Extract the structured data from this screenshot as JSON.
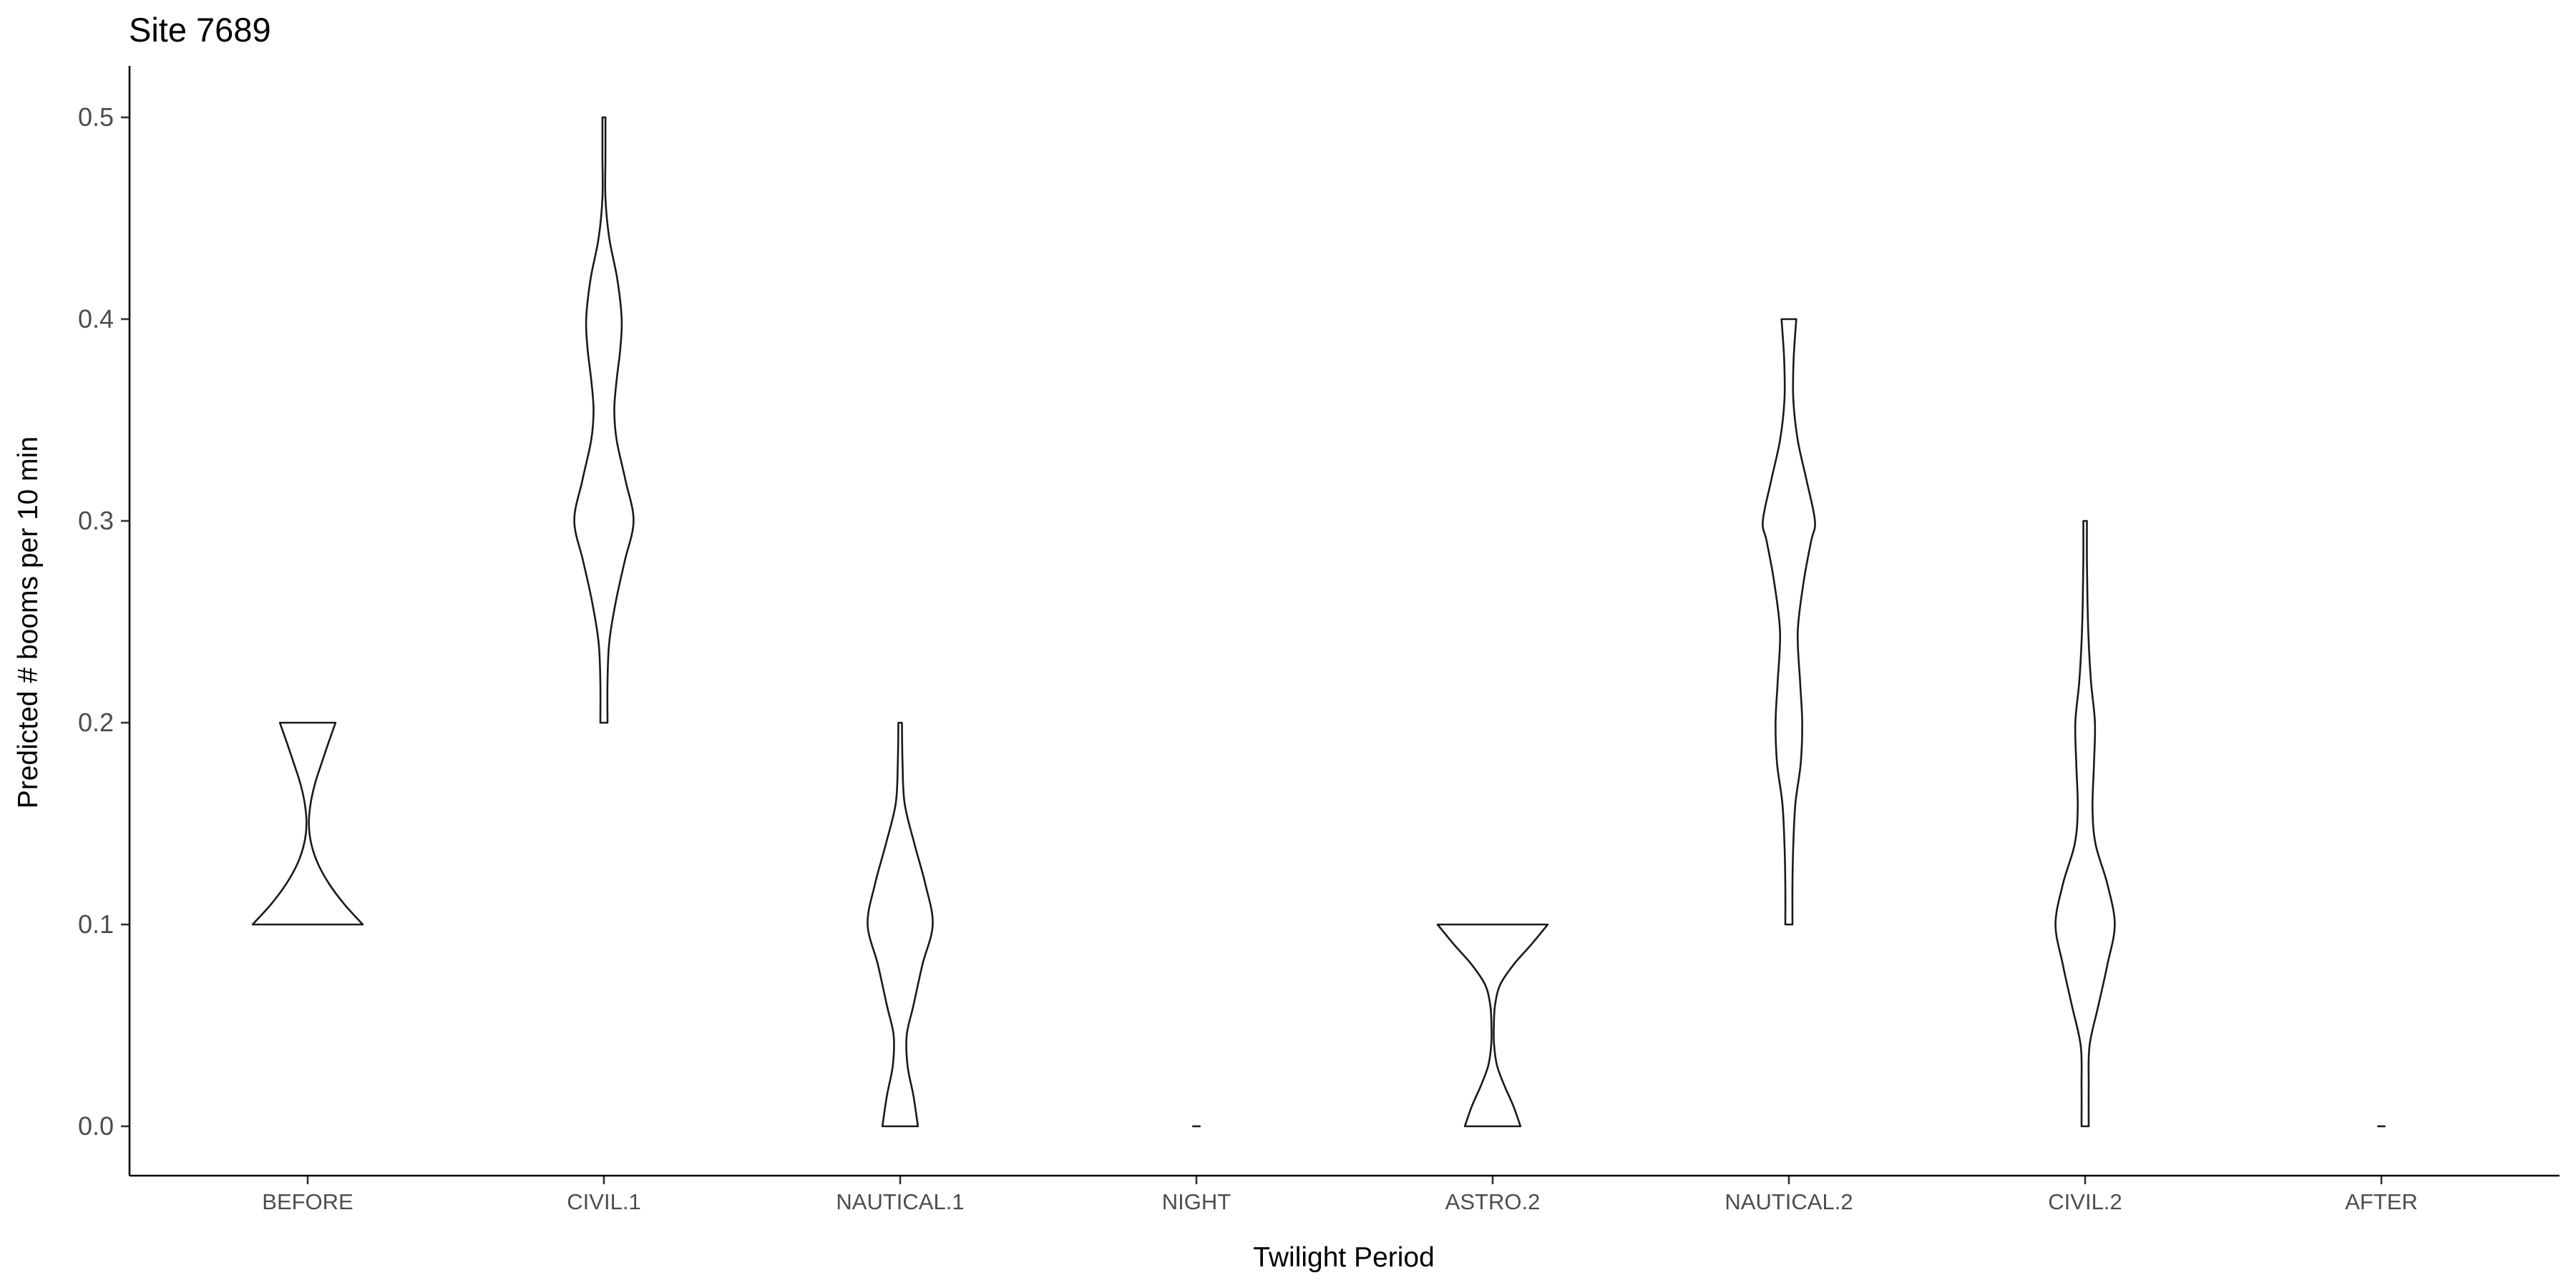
{
  "chart_data": {
    "type": "violin",
    "title": "Site 7689",
    "xlabel": "Twilight Period",
    "ylabel": "Predicted # booms per 10 min",
    "categories": [
      "BEFORE",
      "CIVIL.1",
      "NAUTICAL.1",
      "NIGHT",
      "ASTRO.2",
      "NAUTICAL.2",
      "CIVIL.2",
      "AFTER"
    ],
    "ylim": [
      -0.025,
      0.525
    ],
    "yticks": [
      0.0,
      0.1,
      0.2,
      0.3,
      0.4,
      0.5
    ],
    "ytick_labels": [
      "0.0",
      "0.1",
      "0.2",
      "0.3",
      "0.4",
      "0.5"
    ],
    "grid": false,
    "legend": "none",
    "violins": [
      {
        "category": "BEFORE",
        "min": 0.1,
        "max": 0.2,
        "profile": [
          [
            0.1,
            0.186
          ],
          [
            0.11,
            0.124
          ],
          [
            0.12,
            0.073
          ],
          [
            0.13,
            0.035
          ],
          [
            0.14,
            0.012
          ],
          [
            0.15,
            0.004
          ],
          [
            0.16,
            0.01
          ],
          [
            0.17,
            0.025
          ],
          [
            0.18,
            0.047
          ],
          [
            0.19,
            0.07
          ],
          [
            0.2,
            0.094
          ]
        ]
      },
      {
        "category": "CIVIL.1",
        "min": 0.2,
        "max": 0.5,
        "profile": [
          [
            0.2,
            0.012
          ],
          [
            0.22,
            0.012
          ],
          [
            0.24,
            0.018
          ],
          [
            0.26,
            0.04
          ],
          [
            0.28,
            0.07
          ],
          [
            0.3,
            0.1
          ],
          [
            0.32,
            0.073
          ],
          [
            0.34,
            0.043
          ],
          [
            0.355,
            0.035
          ],
          [
            0.37,
            0.043
          ],
          [
            0.385,
            0.055
          ],
          [
            0.4,
            0.06
          ],
          [
            0.42,
            0.045
          ],
          [
            0.44,
            0.018
          ],
          [
            0.46,
            0.005
          ],
          [
            0.48,
            0.005
          ],
          [
            0.5,
            0.005
          ]
        ]
      },
      {
        "category": "NAUTICAL.1",
        "min": 0.0,
        "max": 0.2,
        "profile": [
          [
            0.0,
            0.06
          ],
          [
            0.015,
            0.045
          ],
          [
            0.03,
            0.025
          ],
          [
            0.045,
            0.022
          ],
          [
            0.06,
            0.045
          ],
          [
            0.08,
            0.075
          ],
          [
            0.1,
            0.11
          ],
          [
            0.12,
            0.085
          ],
          [
            0.14,
            0.048
          ],
          [
            0.16,
            0.015
          ],
          [
            0.18,
            0.008
          ],
          [
            0.2,
            0.006
          ]
        ]
      },
      {
        "category": "NIGHT",
        "min": 0.0,
        "max": 0.0,
        "profile": [
          [
            0.0,
            0.014
          ]
        ]
      },
      {
        "category": "ASTRO.2",
        "min": 0.0,
        "max": 0.1,
        "profile": [
          [
            0.0,
            0.094
          ],
          [
            0.01,
            0.07
          ],
          [
            0.02,
            0.04
          ],
          [
            0.03,
            0.015
          ],
          [
            0.04,
            0.005
          ],
          [
            0.05,
            0.004
          ],
          [
            0.06,
            0.008
          ],
          [
            0.07,
            0.025
          ],
          [
            0.08,
            0.07
          ],
          [
            0.09,
            0.13
          ],
          [
            0.1,
            0.186
          ]
        ]
      },
      {
        "category": "NAUTICAL.2",
        "min": 0.1,
        "max": 0.4,
        "profile": [
          [
            0.1,
            0.012
          ],
          [
            0.12,
            0.012
          ],
          [
            0.14,
            0.015
          ],
          [
            0.16,
            0.022
          ],
          [
            0.18,
            0.04
          ],
          [
            0.2,
            0.045
          ],
          [
            0.22,
            0.038
          ],
          [
            0.245,
            0.03
          ],
          [
            0.27,
            0.05
          ],
          [
            0.29,
            0.075
          ],
          [
            0.3,
            0.088
          ],
          [
            0.32,
            0.06
          ],
          [
            0.34,
            0.03
          ],
          [
            0.36,
            0.015
          ],
          [
            0.38,
            0.016
          ],
          [
            0.4,
            0.025
          ]
        ]
      },
      {
        "category": "CIVIL.2",
        "min": 0.0,
        "max": 0.3,
        "profile": [
          [
            0.0,
            0.012
          ],
          [
            0.02,
            0.012
          ],
          [
            0.04,
            0.015
          ],
          [
            0.06,
            0.045
          ],
          [
            0.08,
            0.075
          ],
          [
            0.1,
            0.1
          ],
          [
            0.12,
            0.075
          ],
          [
            0.14,
            0.035
          ],
          [
            0.158,
            0.025
          ],
          [
            0.18,
            0.03
          ],
          [
            0.2,
            0.033
          ],
          [
            0.22,
            0.02
          ],
          [
            0.24,
            0.012
          ],
          [
            0.26,
            0.008
          ],
          [
            0.28,
            0.006
          ],
          [
            0.3,
            0.006
          ]
        ]
      },
      {
        "category": "AFTER",
        "min": 0.0,
        "max": 0.0,
        "profile": [
          [
            0.0,
            0.014
          ]
        ]
      }
    ]
  },
  "colors": {
    "outline": "#1a1a1a",
    "fill": "#ffffff",
    "axis": "#000000",
    "tick_label": "#4d4d4d"
  }
}
